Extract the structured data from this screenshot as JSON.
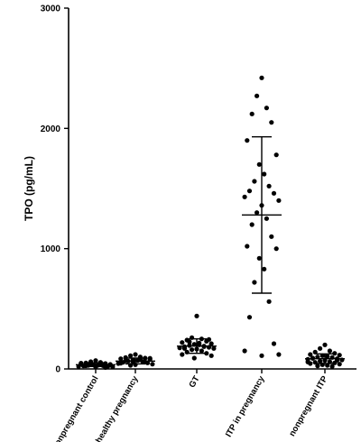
{
  "chart_data": {
    "type": "scatter",
    "title": "",
    "xlabel": "",
    "ylabel": "TPO (pg/mL)",
    "ylim": [
      0,
      3000
    ],
    "yticks": [
      0,
      1000,
      2000,
      3000
    ],
    "grid": false,
    "categories": [
      "nonpregnant control",
      "healthy pregnancy",
      "GT",
      "ITP in pregnancy",
      "nonpregnant ITP"
    ],
    "series": [
      {
        "category": "nonpregnant control",
        "values": [
          70,
          60,
          55,
          50,
          45,
          40,
          38,
          35,
          32,
          30,
          28,
          25,
          22,
          20,
          18,
          15,
          42,
          36,
          26,
          12,
          48,
          33
        ],
        "mean": 35,
        "sd_low": 20,
        "sd_high": 52
      },
      {
        "category": "healthy pregnancy",
        "values": [
          120,
          110,
          100,
          95,
          90,
          85,
          80,
          75,
          70,
          65,
          60,
          55,
          50,
          45,
          40,
          35,
          30,
          78,
          68,
          58,
          48,
          88,
          62
        ],
        "mean": 65,
        "sd_low": 42,
        "sd_high": 90
      },
      {
        "category": "GT",
        "values": [
          440,
          260,
          250,
          240,
          230,
          220,
          210,
          205,
          200,
          195,
          190,
          185,
          180,
          175,
          170,
          165,
          160,
          150,
          140,
          130,
          120,
          110,
          90,
          215,
          225,
          185,
          170,
          245
        ],
        "mean": 190,
        "sd_low": 130,
        "sd_high": 250
      },
      {
        "category": "ITP in pregnancy",
        "values": [
          2420,
          2270,
          2170,
          2120,
          2050,
          1900,
          1780,
          1700,
          1620,
          1560,
          1520,
          1480,
          1460,
          1430,
          1400,
          1360,
          1300,
          1250,
          1200,
          1100,
          1020,
          1000,
          920,
          830,
          720,
          560,
          430,
          210,
          150,
          120,
          110
        ],
        "mean": 1280,
        "sd_low": 630,
        "sd_high": 1930
      },
      {
        "category": "nonpregnant ITP",
        "values": [
          200,
          170,
          150,
          140,
          130,
          120,
          115,
          110,
          105,
          100,
          95,
          90,
          85,
          80,
          75,
          70,
          65,
          60,
          55,
          50,
          45,
          40,
          35,
          30,
          25,
          20,
          88,
          72,
          58
        ],
        "mean": 85,
        "sd_low": 45,
        "sd_high": 125
      }
    ]
  }
}
